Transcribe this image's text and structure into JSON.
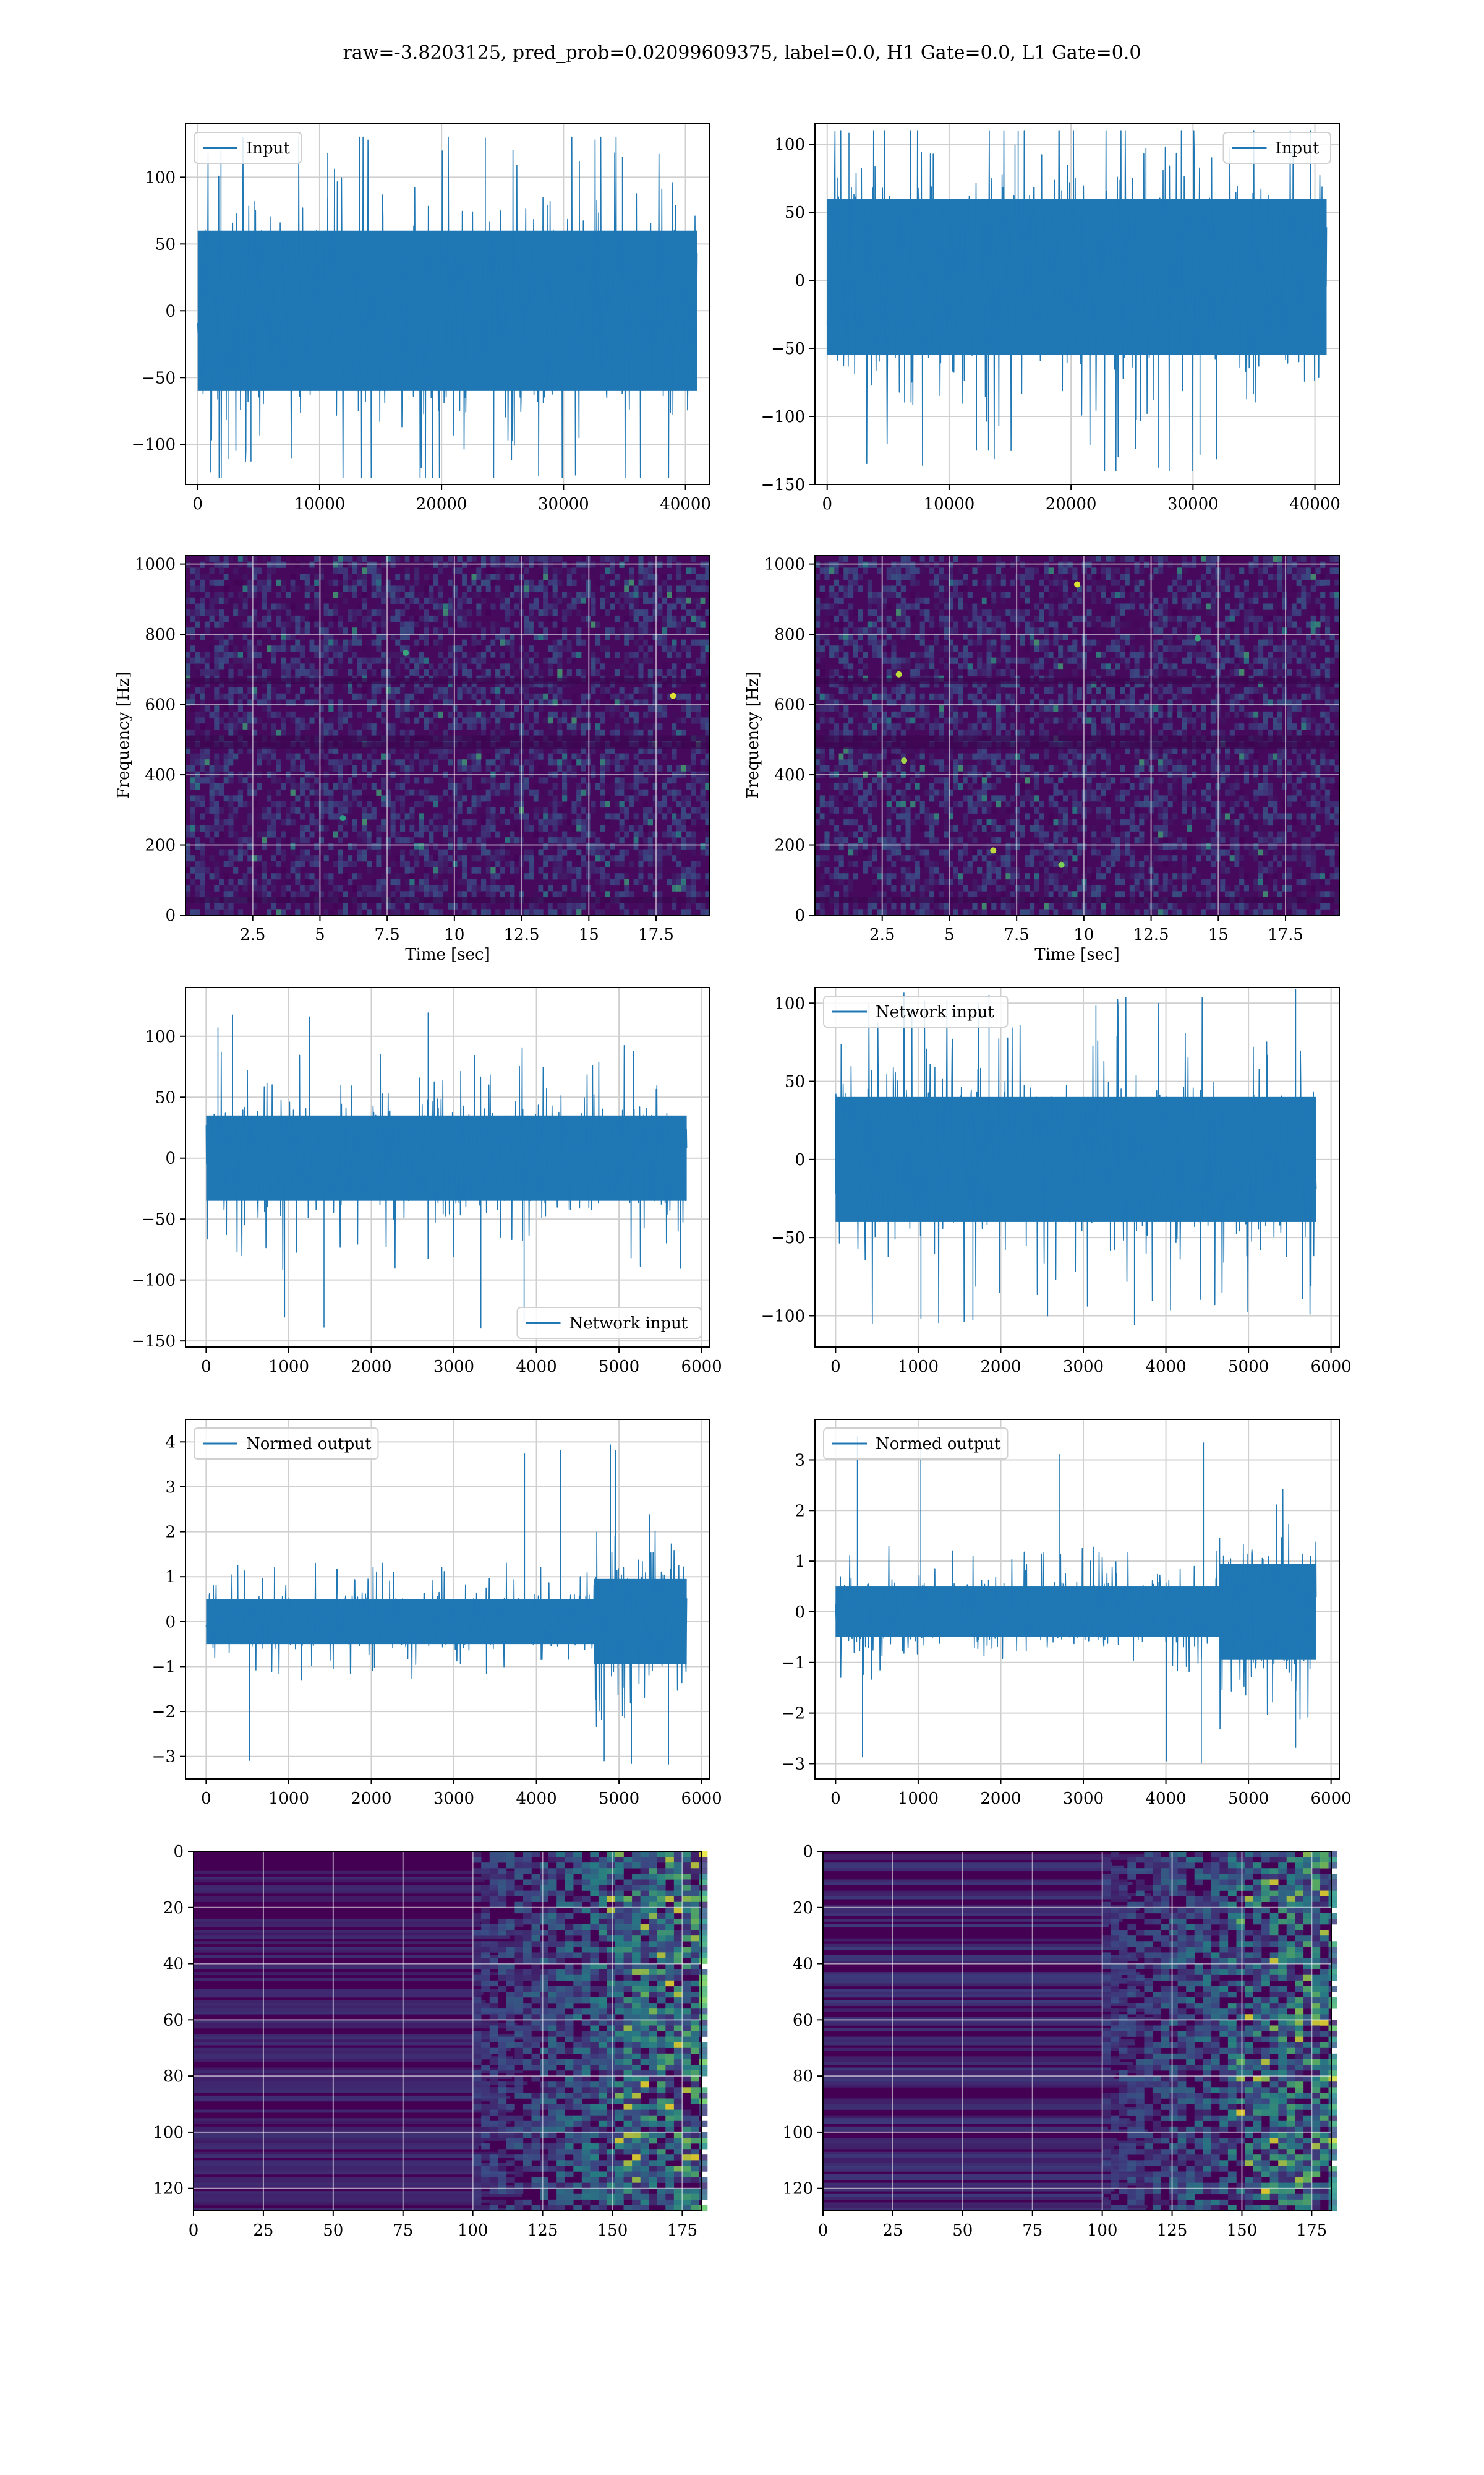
{
  "figure": {
    "title": "raw=-3.8203125, pred_prob=0.02099609375, label=0.0, H1 Gate=0.0, L1 Gate=0.0"
  },
  "colors": {
    "series": "#1f77b4",
    "grid": "#cfcfcf",
    "viridis_low": "#440154",
    "viridis_mid": "#21918c",
    "viridis_high": "#fde725"
  },
  "chart_data": [
    {
      "type": "line",
      "id": "r1l",
      "xlim": [
        -1000,
        42000
      ],
      "ylim": [
        -130,
        140
      ],
      "xticks": [
        0,
        10000,
        20000,
        30000,
        40000
      ],
      "yticks": [
        -100,
        -50,
        0,
        50,
        100
      ],
      "xlabel": "",
      "ylabel": "",
      "series": [
        {
          "name": "Input",
          "x_range": [
            0,
            40960
          ],
          "envelope_core": [
            -60,
            60
          ],
          "envelope_peak": [
            -125,
            130
          ]
        }
      ],
      "legend": "upper left",
      "grid": true
    },
    {
      "type": "line",
      "id": "r1r",
      "xlim": [
        -1000,
        42000
      ],
      "ylim": [
        -150,
        115
      ],
      "xticks": [
        0,
        10000,
        20000,
        30000,
        40000
      ],
      "yticks": [
        -150,
        -100,
        -50,
        0,
        50,
        100
      ],
      "xlabel": "",
      "ylabel": "",
      "series": [
        {
          "name": "Input",
          "x_range": [
            0,
            40960
          ],
          "envelope_core": [
            -55,
            60
          ],
          "envelope_peak": [
            -140,
            110
          ]
        }
      ],
      "legend": "upper right",
      "grid": true
    },
    {
      "type": "heatmap",
      "id": "r2l",
      "xlim": [
        0,
        19.5
      ],
      "ylim": [
        0,
        1024
      ],
      "xticks": [
        2.5,
        5.0,
        7.5,
        10.0,
        12.5,
        15.0,
        17.5
      ],
      "yticks": [
        0,
        200,
        400,
        600,
        800,
        1000
      ],
      "xlabel": "Time [sec]",
      "ylabel": "Frequency [Hz]",
      "colormap": "viridis",
      "grid": true
    },
    {
      "type": "heatmap",
      "id": "r2r",
      "xlim": [
        0,
        19.5
      ],
      "ylim": [
        0,
        1024
      ],
      "xticks": [
        2.5,
        5.0,
        7.5,
        10.0,
        12.5,
        15.0,
        17.5
      ],
      "yticks": [
        0,
        200,
        400,
        600,
        800,
        1000
      ],
      "xlabel": "Time [sec]",
      "ylabel": "Frequency [Hz]",
      "colormap": "viridis",
      "grid": true
    },
    {
      "type": "line",
      "id": "r3l",
      "xlim": [
        -250,
        6100
      ],
      "ylim": [
        -155,
        140
      ],
      "xticks": [
        0,
        1000,
        2000,
        3000,
        4000,
        5000,
        6000
      ],
      "yticks": [
        -150,
        -100,
        -50,
        0,
        50,
        100
      ],
      "xlabel": "",
      "ylabel": "",
      "series": [
        {
          "name": "Network input",
          "x_range": [
            0,
            5820
          ],
          "envelope_core": [
            -35,
            35
          ],
          "envelope_peak": [
            -140,
            120
          ]
        }
      ],
      "legend": "lower right",
      "grid": true
    },
    {
      "type": "line",
      "id": "r3r",
      "xlim": [
        -250,
        6100
      ],
      "ylim": [
        -120,
        110
      ],
      "xticks": [
        0,
        1000,
        2000,
        3000,
        4000,
        5000,
        6000
      ],
      "yticks": [
        -100,
        -50,
        0,
        50,
        100
      ],
      "xlabel": "",
      "ylabel": "",
      "series": [
        {
          "name": "Network input",
          "x_range": [
            0,
            5820
          ],
          "envelope_core": [
            -40,
            40
          ],
          "envelope_peak": [
            -110,
            110
          ]
        }
      ],
      "legend": "upper left",
      "grid": true
    },
    {
      "type": "line",
      "id": "r4l",
      "xlim": [
        -250,
        6100
      ],
      "ylim": [
        -3.5,
        4.5
      ],
      "xticks": [
        0,
        1000,
        2000,
        3000,
        4000,
        5000,
        6000
      ],
      "yticks": [
        -3,
        -2,
        -1,
        0,
        1,
        2,
        3,
        4
      ],
      "xlabel": "",
      "ylabel": "",
      "series": [
        {
          "name": "Normed output",
          "x_range": [
            0,
            5820
          ],
          "envelope_core": [
            -0.5,
            0.5
          ],
          "envelope_peak": [
            -3.2,
            4.1
          ],
          "burst_start": 4700
        }
      ],
      "legend": "upper left",
      "grid": true
    },
    {
      "type": "line",
      "id": "r4r",
      "xlim": [
        -250,
        6100
      ],
      "ylim": [
        -3.3,
        3.8
      ],
      "xticks": [
        0,
        1000,
        2000,
        3000,
        4000,
        5000,
        6000
      ],
      "yticks": [
        -3,
        -2,
        -1,
        0,
        1,
        2,
        3
      ],
      "xlabel": "",
      "ylabel": "",
      "series": [
        {
          "name": "Normed output",
          "x_range": [
            0,
            5820
          ],
          "envelope_core": [
            -0.5,
            0.5
          ],
          "envelope_peak": [
            -3.0,
            3.5
          ],
          "burst_start": 4650
        }
      ],
      "legend": "upper left",
      "grid": true
    },
    {
      "type": "heatmap",
      "id": "r5l",
      "xlim": [
        0,
        182
      ],
      "ylim": [
        128,
        0
      ],
      "xticks": [
        0,
        25,
        50,
        75,
        100,
        125,
        150,
        175
      ],
      "yticks": [
        0,
        20,
        40,
        60,
        80,
        100,
        120
      ],
      "xlabel": "",
      "ylabel": "",
      "colormap": "viridis",
      "grid": true
    },
    {
      "type": "heatmap",
      "id": "r5r",
      "xlim": [
        0,
        182
      ],
      "ylim": [
        128,
        0
      ],
      "xticks": [
        0,
        25,
        50,
        75,
        100,
        125,
        150,
        175
      ],
      "yticks": [
        0,
        20,
        40,
        60,
        80,
        100,
        120
      ],
      "xlabel": "",
      "ylabel": "",
      "colormap": "viridis",
      "grid": true
    }
  ]
}
